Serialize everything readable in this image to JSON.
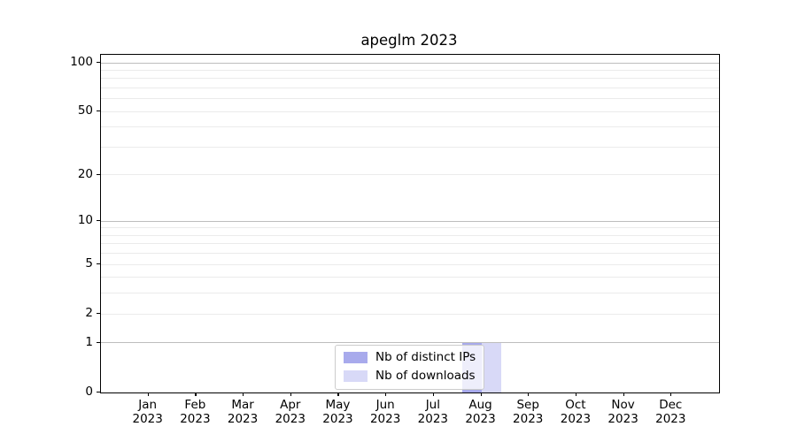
{
  "figure": {
    "background": "#ffffff"
  },
  "chart_data": {
    "type": "bar",
    "title": "apeglm 2023",
    "categories": [
      "Jan 2023",
      "Feb 2023",
      "Mar 2023",
      "Apr 2023",
      "May 2023",
      "Jun 2023",
      "Jul 2023",
      "Aug 2023",
      "Sep 2023",
      "Oct 2023",
      "Nov 2023",
      "Dec 2023"
    ],
    "series": [
      {
        "name": "Nb of distinct IPs",
        "color": "#a8aaec",
        "values": [
          0,
          0,
          0,
          0,
          0,
          0,
          0,
          1,
          0,
          0,
          0,
          0
        ]
      },
      {
        "name": "Nb of downloads",
        "color": "#d8d9f7",
        "values": [
          0,
          0,
          0,
          0,
          0,
          0,
          0,
          1,
          0,
          0,
          0,
          0
        ]
      }
    ],
    "xlabel": "",
    "ylabel": "",
    "y_axis": {
      "scale": "log1p",
      "ticks": [
        0,
        1,
        2,
        5,
        10,
        20,
        50,
        100
      ],
      "major_gridlines": [
        1,
        10,
        100
      ],
      "minor_gridlines": [
        2,
        3,
        4,
        5,
        6,
        7,
        8,
        9,
        20,
        30,
        40,
        50,
        60,
        70,
        80,
        90
      ],
      "ylim": [
        0,
        112
      ]
    },
    "legend": {
      "position": "lower center",
      "entries": [
        "Nb of distinct IPs",
        "Nb of downloads"
      ]
    },
    "grid": true,
    "colors": {
      "major_grid": "#bdbdbd",
      "minor_grid": "#ebebeb",
      "spine": "#000000",
      "tick_label": "#000000"
    }
  }
}
